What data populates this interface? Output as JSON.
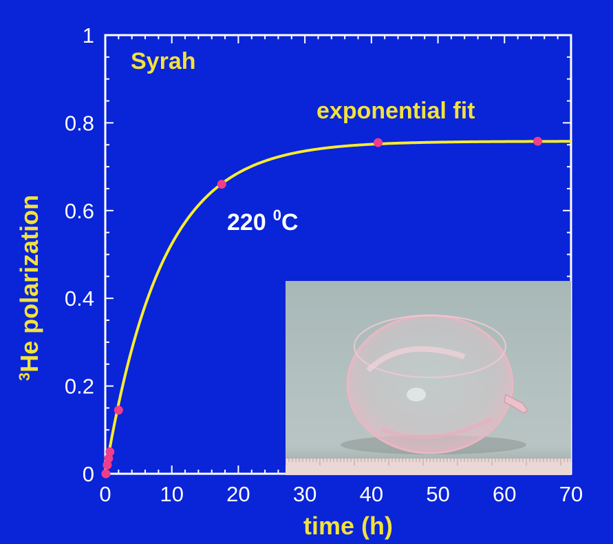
{
  "chart_data": {
    "type": "scatter",
    "title": "",
    "xlabel": "time (h)",
    "ylabel": "He polarization",
    "ylabel_superscript": "3",
    "xlim": [
      0,
      70
    ],
    "ylim": [
      0,
      1
    ],
    "x_ticks": [
      "0",
      "10",
      "20",
      "30",
      "40",
      "50",
      "60",
      "70"
    ],
    "y_ticks": [
      "0",
      "0.2",
      "0.4",
      "0.6",
      "0.8",
      "1"
    ],
    "series": [
      {
        "type": "scatter",
        "color": "#ee3e8a",
        "points": [
          {
            "x": 0.1,
            "y": 0.0
          },
          {
            "x": 0.3,
            "y": 0.02
          },
          {
            "x": 0.5,
            "y": 0.035
          },
          {
            "x": 0.7,
            "y": 0.05
          },
          {
            "x": 2.0,
            "y": 0.145
          },
          {
            "x": 17.5,
            "y": 0.66
          },
          {
            "x": 41.0,
            "y": 0.755
          },
          {
            "x": 65.0,
            "y": 0.758
          }
        ]
      },
      {
        "type": "line",
        "color": "#f7ec2e",
        "fit": {
          "p_max": 0.758,
          "tau_h": 8.5
        }
      }
    ],
    "annotations": {
      "sample_name": "Syrah",
      "fit_label": "exponential fit",
      "temperature_value": "220",
      "temperature_sup": "0",
      "temperature_unit": "C"
    },
    "grid": false,
    "inset_photo": "glass-cell-photo"
  },
  "colors": {
    "background": "#0a24d8",
    "axis_text": "#ffffff",
    "label": "#f2e23a",
    "fit_line": "#f7ec2e",
    "points": "#ee3e8a"
  }
}
